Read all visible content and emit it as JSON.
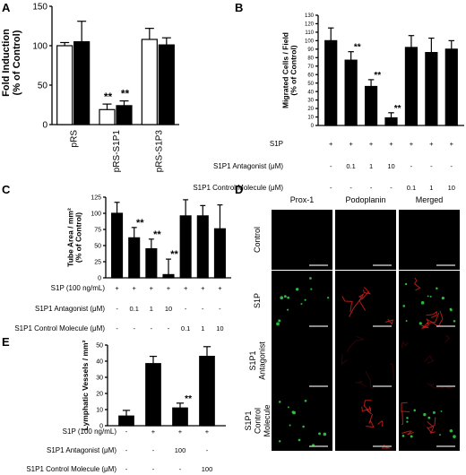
{
  "panels": {
    "A": "A",
    "B": "B",
    "C": "C",
    "D": "D",
    "E": "E"
  },
  "treatment_labels": {
    "s1p": "S1P",
    "s1p_conc": "S1P (100 ng/mL)",
    "antagonist": "S1P1 Antagonist (μM)",
    "control_molecule": "S1P1 Control Molecule (μM)"
  },
  "panel_b_rows": [
    [
      "+",
      "+",
      "+",
      "+",
      "+",
      "+",
      "+"
    ],
    [
      "-",
      "0.1",
      "1",
      "10",
      "-",
      "-",
      "-"
    ],
    [
      "-",
      "-",
      "-",
      "-",
      "0.1",
      "1",
      "10"
    ]
  ],
  "panel_c_rows": [
    [
      "+",
      "+",
      "+",
      "+",
      "+",
      "+",
      "+"
    ],
    [
      "-",
      "0.1",
      "1",
      "10",
      "-",
      "-",
      "-"
    ],
    [
      "-",
      "-",
      "-",
      "-",
      "0.1",
      "1",
      "10"
    ]
  ],
  "panel_e_rows": [
    [
      "-",
      "+",
      "+",
      "+"
    ],
    [
      "-",
      "-",
      "100",
      "-"
    ],
    [
      "-",
      "-",
      "-",
      "100"
    ]
  ],
  "micrograph": {
    "columns": [
      "Prox-1",
      "Podoplanin",
      "Merged"
    ],
    "rows": [
      "Control",
      "S1P",
      "S1P1 Antagonist",
      "S1P1 Control Molecule"
    ],
    "row_lines": [
      [
        "Control"
      ],
      [
        "S1P"
      ],
      [
        "S1P1",
        "Antagonist"
      ],
      [
        "S1P1",
        "Control",
        "Molecule"
      ]
    ],
    "colors": {
      "prox1": "#2ecc40",
      "podoplanin": "#e0201b",
      "scalebar": "#bbbbbb",
      "bg": "#000000"
    }
  },
  "chart_data": [
    {
      "panel": "A",
      "type": "bar",
      "ylabel": "Fold Induction\n(% of Control)",
      "ylim": [
        0,
        150
      ],
      "yticks": [
        "0",
        "50",
        "100",
        "150"
      ],
      "categories": [
        "pRS",
        "pRS-S1P1",
        "pRS-S1P3"
      ],
      "series": [
        {
          "values": [
            100,
            19,
            108
          ],
          "errors": [
            4,
            7,
            14
          ],
          "fill": "white"
        },
        {
          "values": [
            105,
            24,
            101
          ],
          "errors": [
            26,
            6,
            9
          ],
          "fill": "black"
        }
      ],
      "significance": [
        "",
        "**",
        ""
      ],
      "significance_both_bars": true
    },
    {
      "panel": "B",
      "type": "bar",
      "ylabel": "Migrated Cells / Field\n(% of Control)",
      "ylim": [
        0,
        130
      ],
      "yticks": [
        "0",
        "10",
        "20",
        "30",
        "40",
        "50",
        "60",
        "70",
        "80",
        "90",
        "100",
        "110",
        "120",
        "130"
      ],
      "values": [
        100,
        77,
        46,
        9,
        92,
        86,
        90
      ],
      "errors": [
        15,
        10,
        8,
        6,
        14,
        17,
        10
      ],
      "significance": [
        "",
        "**",
        "**",
        "**",
        "",
        "",
        ""
      ]
    },
    {
      "panel": "C",
      "type": "bar",
      "ylabel": "Tube Area / mm²\n(% of Control)",
      "ylim": [
        0,
        125
      ],
      "yticks": [
        "0",
        "25",
        "50",
        "75",
        "100",
        "125"
      ],
      "values": [
        100,
        62,
        45,
        5,
        96,
        96,
        76
      ],
      "errors": [
        17,
        16,
        15,
        24,
        25,
        16,
        37
      ],
      "significance": [
        "",
        "**",
        "**",
        "**",
        "",
        "",
        ""
      ]
    },
    {
      "panel": "E",
      "type": "bar",
      "ylabel": "Lymphatic Vessels / mm²",
      "ylim": [
        0,
        50
      ],
      "yticks": [
        "0",
        "10",
        "20",
        "30",
        "40",
        "50"
      ],
      "values": [
        6,
        38.5,
        11,
        43
      ],
      "errors": [
        3.5,
        4.5,
        3,
        6
      ],
      "significance": [
        "",
        "",
        "**",
        ""
      ]
    }
  ]
}
